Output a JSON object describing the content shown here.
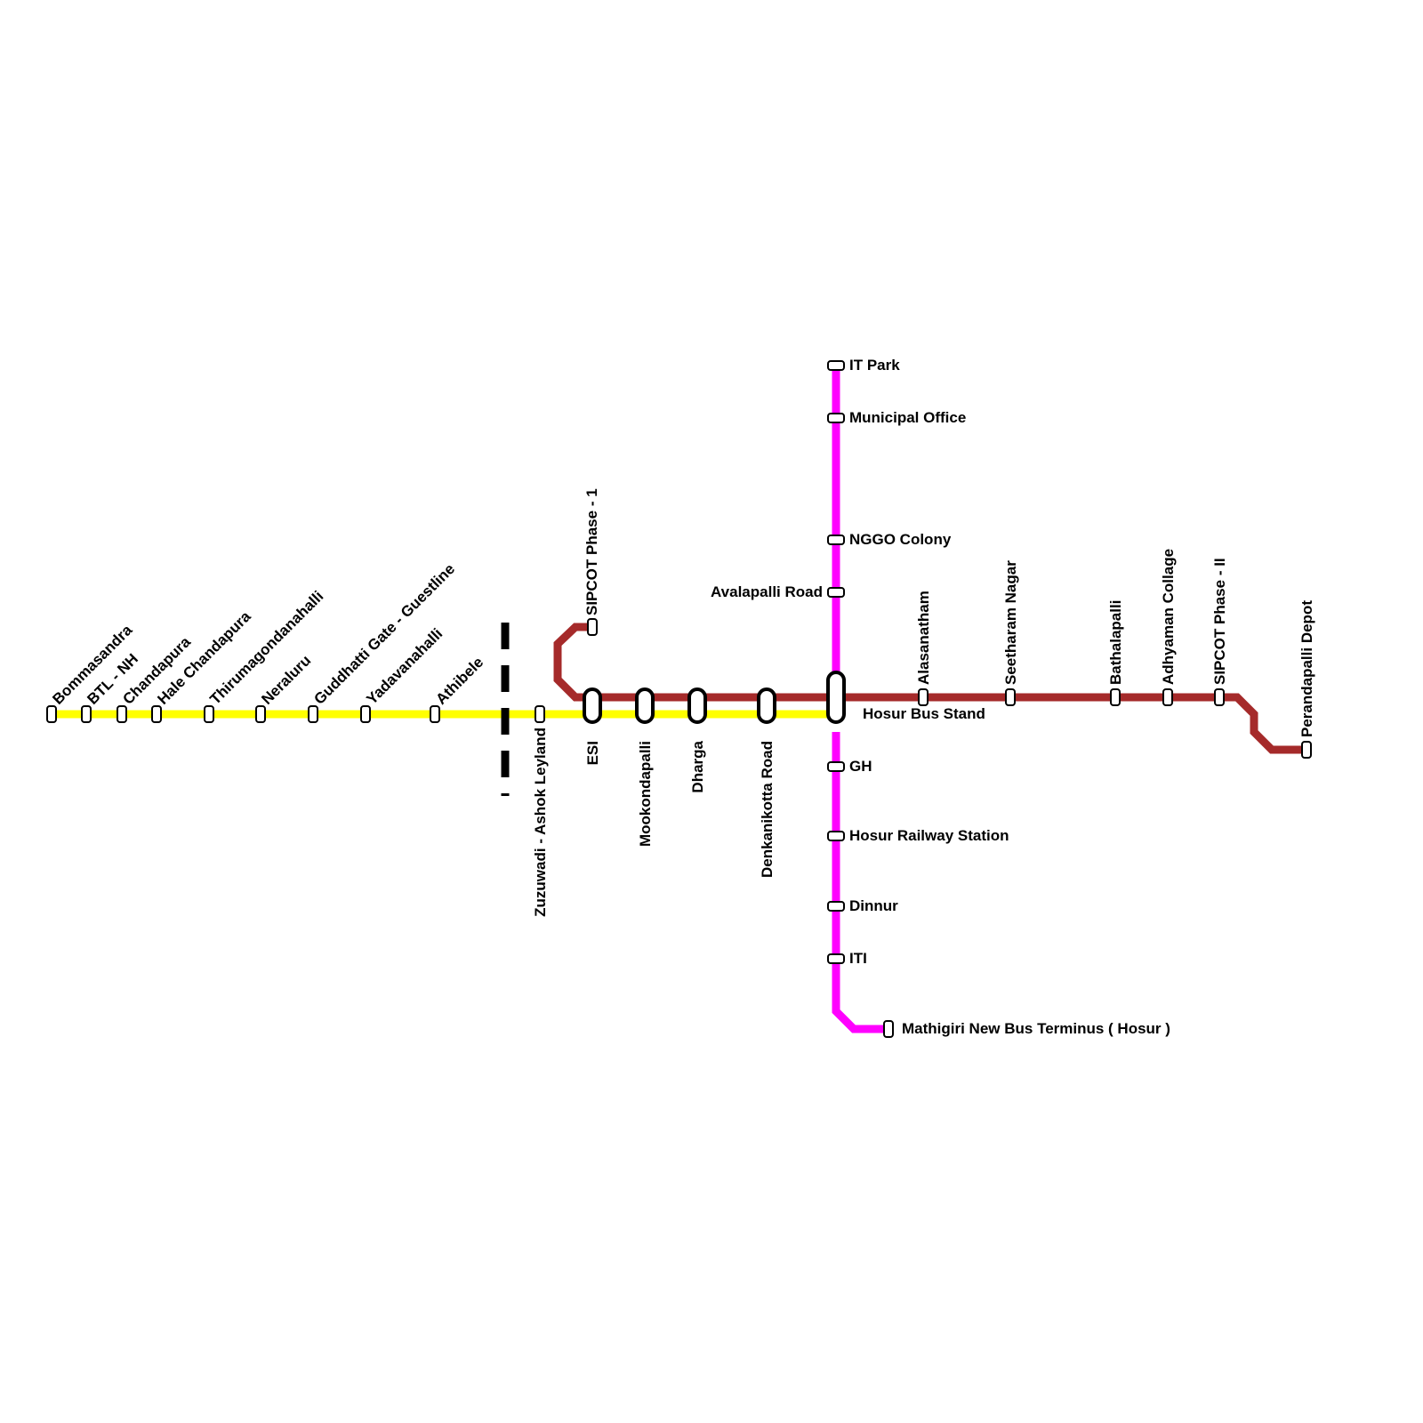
{
  "colors": {
    "yellow_line": "#FFFF00",
    "brown_line": "#A52A2A",
    "magenta_line": "#FF00FF",
    "boundary": "#000000"
  },
  "yellow_line": {
    "stations": [
      "Bommasandra",
      "BTL - NH",
      "Chandapura",
      "Hale Chandapura",
      "Thirumagondanahalli",
      "Neraluru",
      "Guddhatti Gate - Guestline",
      "Yadavanahalli",
      "Athibele",
      "Zuzuwadi - Ashok Leyland"
    ]
  },
  "shared": {
    "interchanges": [
      "ESI",
      "Mookondapalli",
      "Dharga",
      "Denkanikotta Road"
    ],
    "hub": "Hosur Bus Stand"
  },
  "brown_line": {
    "branch_start": "SIPCOT Phase - 1",
    "stations": [
      "Alasanatham",
      "Seetharam Nagar",
      "Bathalapalli",
      "Adhyaman Collage",
      "SIPCOT Phase - II",
      "Perandapalli Depot"
    ]
  },
  "magenta_line": {
    "north": [
      "IT Park",
      "Municipal Office",
      "NGGO Colony",
      "Avalapalli Road"
    ],
    "south": [
      "GH",
      "Hosur Railway Station",
      "Dinnur",
      "ITI",
      "Mathigiri New Bus Terminus ( Hosur )"
    ]
  }
}
